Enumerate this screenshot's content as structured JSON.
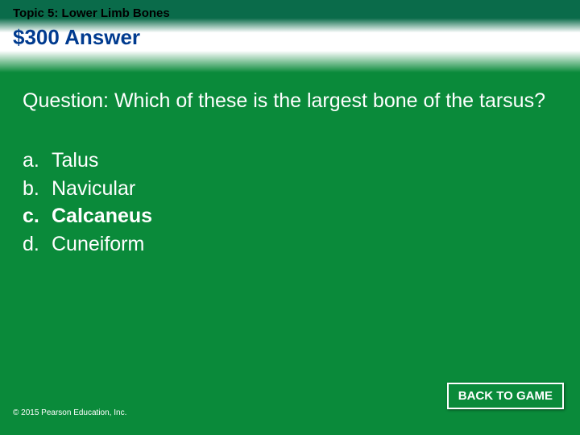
{
  "header": {
    "topic": "Topic 5: Lower Limb Bones",
    "title": "$300 Answer"
  },
  "question": "Question: Which of these is the largest bone of the tarsus?",
  "options": [
    {
      "letter": "a.",
      "text": "Talus",
      "correct": false
    },
    {
      "letter": "b.",
      "text": "Navicular",
      "correct": false
    },
    {
      "letter": "c.",
      "text": "Calcaneus",
      "correct": true
    },
    {
      "letter": "d.",
      "text": "Cuneiform",
      "correct": false
    }
  ],
  "copyright": "© 2015 Pearson Education, Inc.",
  "back_button": "BACK TO GAME",
  "colors": {
    "background": "#0a8a3a",
    "header_dark": "#0a6b4a",
    "title_color": "#003b8f",
    "text_color": "#ffffff",
    "topic_color": "#000000",
    "button_border": "#ffffff"
  },
  "typography": {
    "topic_fontsize": 15,
    "title_fontsize": 26,
    "question_fontsize": 25,
    "option_fontsize": 25,
    "copyright_fontsize": 10,
    "button_fontsize": 15
  }
}
